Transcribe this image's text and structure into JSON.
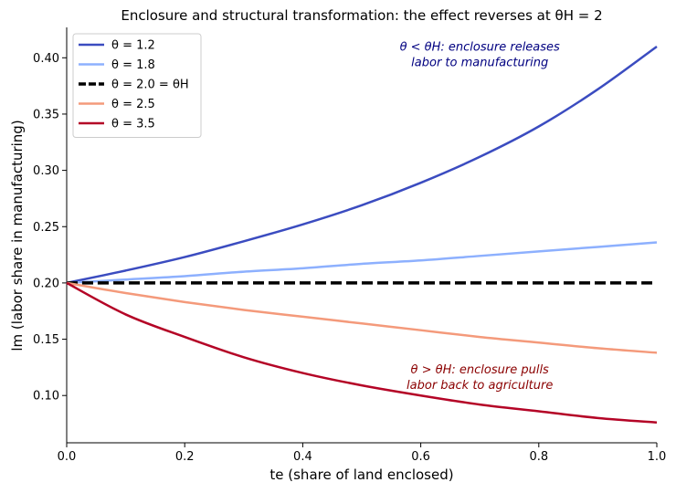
{
  "chart_data": {
    "type": "line",
    "title": "Enclosure and structural transformation: the effect reverses at θH = 2",
    "xlabel": "te  (share of land enclosed)",
    "ylabel": "lm  (labor share in manufacturing)",
    "xlim": [
      0.0,
      1.0
    ],
    "ylim": [
      0.058,
      0.427
    ],
    "xticks": [
      "0.0",
      "0.2",
      "0.4",
      "0.6",
      "0.8",
      "1.0"
    ],
    "yticks": [
      "0.10",
      "0.15",
      "0.20",
      "0.25",
      "0.30",
      "0.35",
      "0.40"
    ],
    "grid": false,
    "legend_position": "top-left",
    "x": [
      0.0,
      0.1,
      0.2,
      0.3,
      0.4,
      0.5,
      0.6,
      0.7,
      0.8,
      0.9,
      1.0
    ],
    "series": [
      {
        "name": "θ = 1.2",
        "color": "#3b4cc0",
        "dash": "solid",
        "values": [
          0.2,
          0.211,
          0.223,
          0.237,
          0.252,
          0.269,
          0.289,
          0.312,
          0.339,
          0.372,
          0.41
        ]
      },
      {
        "name": "θ = 1.8",
        "color": "#8db0fe",
        "dash": "solid",
        "values": [
          0.2,
          0.203,
          0.206,
          0.21,
          0.213,
          0.217,
          0.22,
          0.224,
          0.228,
          0.232,
          0.236
        ]
      },
      {
        "name": "θ = 2.0   = θH",
        "color": "#000000",
        "dash": "dashed",
        "values": [
          0.2,
          0.2,
          0.2,
          0.2,
          0.2,
          0.2,
          0.2,
          0.2,
          0.2,
          0.2,
          0.2
        ]
      },
      {
        "name": "θ = 2.5",
        "color": "#f49a7b",
        "dash": "solid",
        "values": [
          0.2,
          0.191,
          0.183,
          0.176,
          0.17,
          0.164,
          0.158,
          0.152,
          0.147,
          0.142,
          0.138
        ]
      },
      {
        "name": "θ = 3.5",
        "color": "#b40426",
        "dash": "solid",
        "values": [
          0.2,
          0.172,
          0.152,
          0.134,
          0.12,
          0.109,
          0.1,
          0.092,
          0.086,
          0.08,
          0.076
        ]
      }
    ],
    "annotations": [
      {
        "lines": [
          "θ < θH: enclosure releases",
          "labor to manufacturing"
        ],
        "color": "#000080",
        "x": 0.7,
        "y": 0.4
      },
      {
        "lines": [
          "θ > θH: enclosure pulls",
          "labor back to agriculture"
        ],
        "color": "#8b0000",
        "x": 0.7,
        "y": 0.113
      }
    ]
  }
}
